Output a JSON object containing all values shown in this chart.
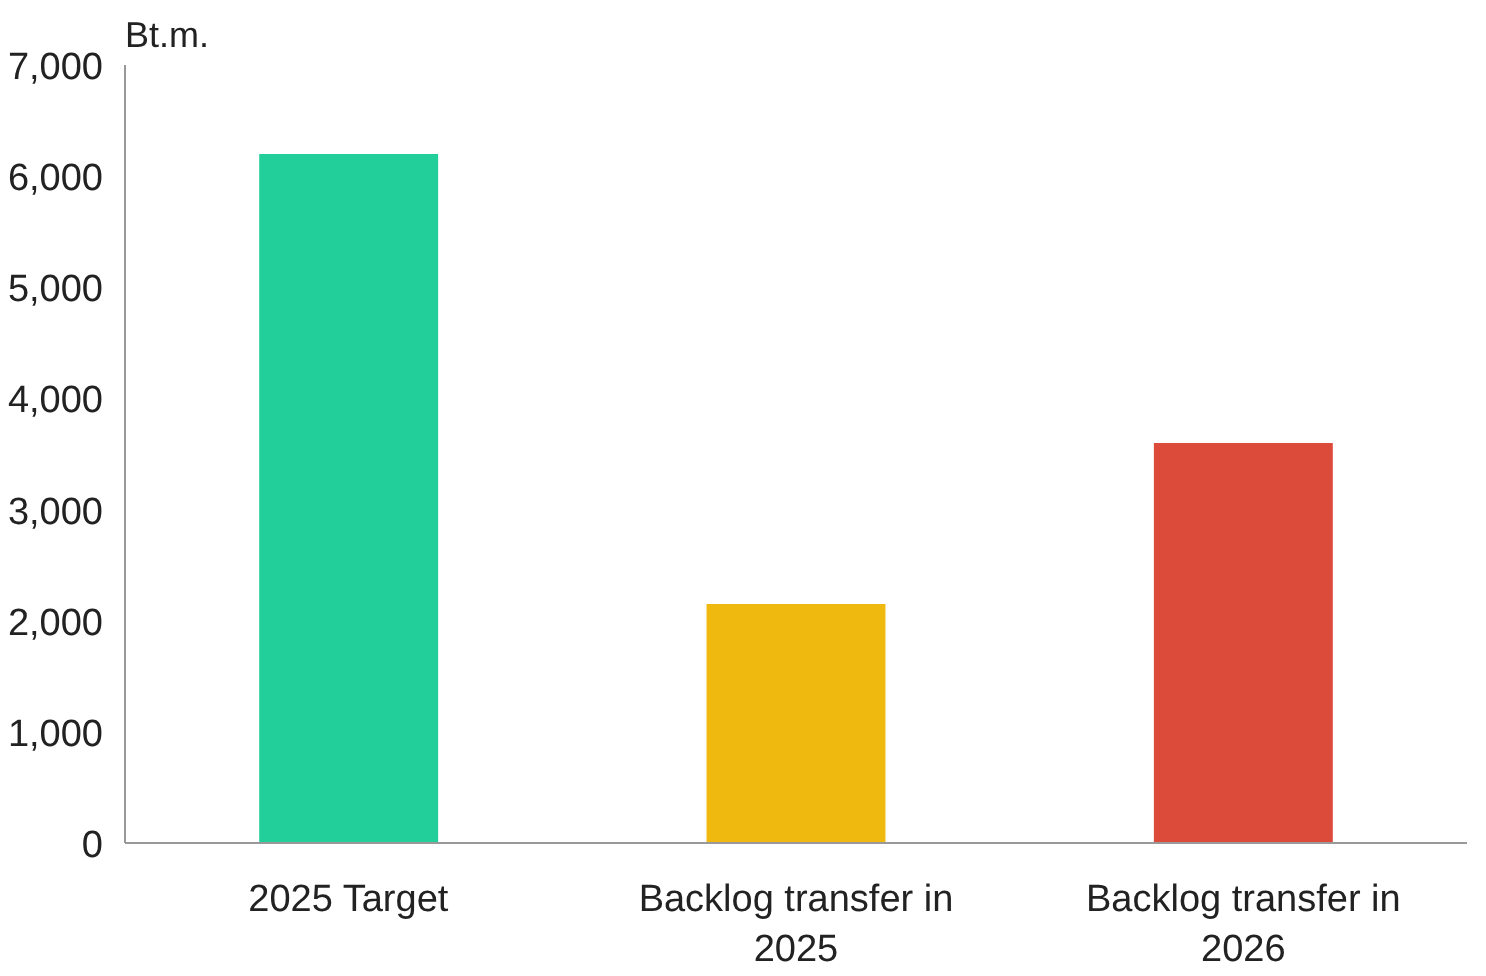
{
  "chart_data": {
    "type": "bar",
    "ylabel": "Bt.m.",
    "categories": [
      "2025 Target",
      "Backlog transfer in 2025",
      "Backlog transfer in 2026"
    ],
    "values": [
      6200,
      2150,
      3600
    ],
    "colors": [
      "#22cf9a",
      "#f0b90f",
      "#dc4a3a"
    ],
    "ylim": [
      0,
      7000
    ],
    "yticks": [
      0,
      {
        "value": 1000,
        "label": "1,000"
      },
      {
        "value": 2000,
        "label": "2,000"
      },
      {
        "value": 3000,
        "label": "3,000"
      },
      {
        "value": 4000,
        "label": "4,000"
      },
      {
        "value": 5000,
        "label": "5,000"
      },
      {
        "value": 6000,
        "label": "6,000"
      },
      {
        "value": 7000,
        "label": "7,000"
      }
    ],
    "grid": false
  }
}
